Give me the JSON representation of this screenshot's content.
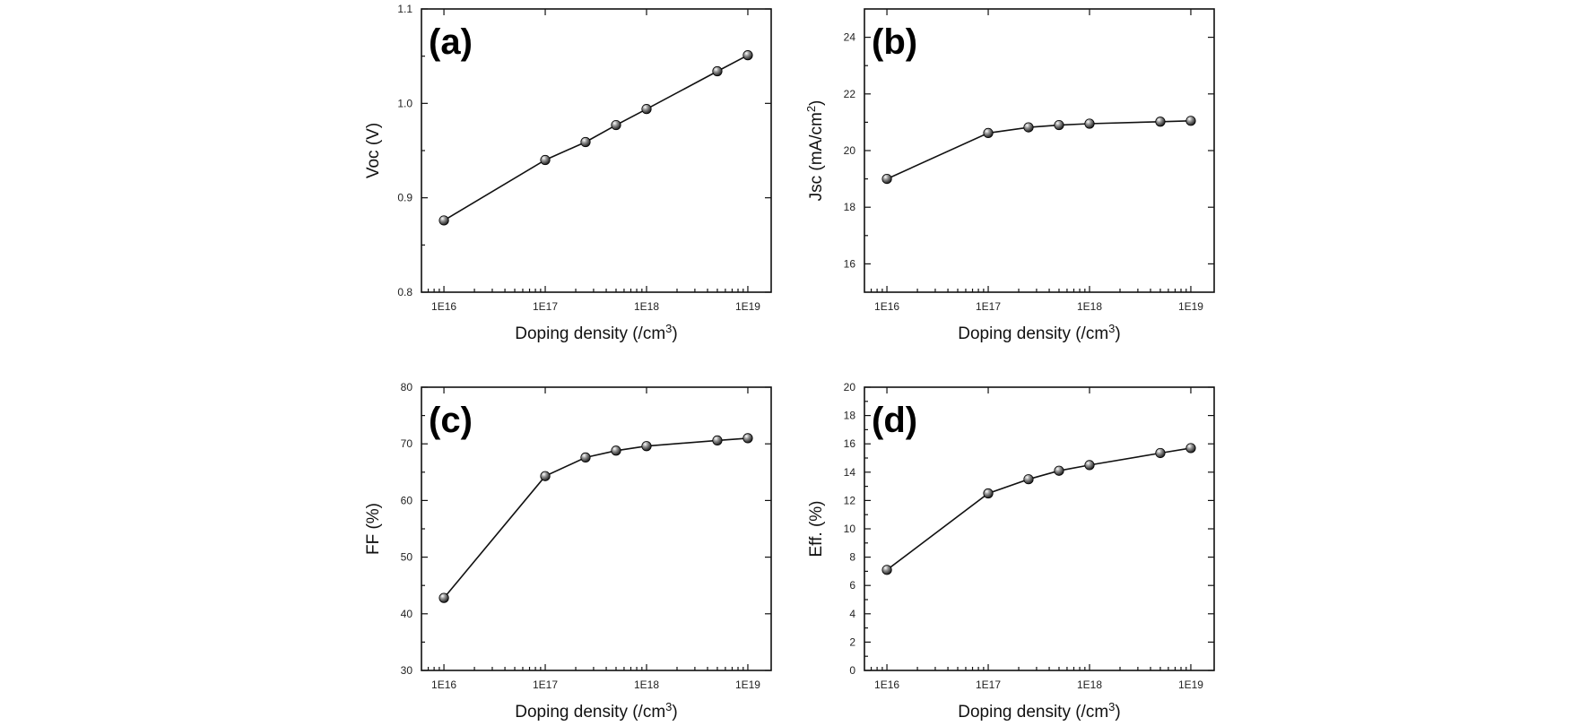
{
  "chart_data": [
    {
      "type": "line",
      "panel_label": "(a)",
      "xlabel_main": "Doping density (/cm",
      "xlabel_sup": "3",
      "xlabel_end": ")",
      "ylabel_main": "Voc (V)",
      "ylabel_sup": "",
      "ylabel_end": "",
      "x_scale": "log",
      "xlim": [
        6000000000000000.0,
        1.7e+19
      ],
      "x_ticks": [
        1e+16,
        1e+17,
        1e+18,
        1e+19
      ],
      "x_tick_labels": [
        "1E16",
        "1E17",
        "1E18",
        "1E19"
      ],
      "ylim": [
        0.8,
        1.1
      ],
      "y_ticks": [
        0.8,
        0.9,
        1.0,
        1.1
      ],
      "y_tick_labels": [
        "0.8",
        "0.9",
        "1.0",
        "1.1"
      ],
      "x": [
        1e+16,
        1e+17,
        2.5e+17,
        5e+17,
        1e+18,
        5e+18,
        1e+19
      ],
      "values": [
        0.876,
        0.94,
        0.959,
        0.977,
        0.994,
        1.034,
        1.051
      ]
    },
    {
      "type": "line",
      "panel_label": "(b)",
      "xlabel_main": "Doping density (/cm",
      "xlabel_sup": "3",
      "xlabel_end": ")",
      "ylabel_main": "Jsc (mA/cm",
      "ylabel_sup": "2",
      "ylabel_end": ")",
      "x_scale": "log",
      "xlim": [
        6000000000000000.0,
        1.7e+19
      ],
      "x_ticks": [
        1e+16,
        1e+17,
        1e+18,
        1e+19
      ],
      "x_tick_labels": [
        "1E16",
        "1E17",
        "1E18",
        "1E19"
      ],
      "ylim": [
        15,
        25
      ],
      "y_ticks": [
        16,
        18,
        20,
        22,
        24
      ],
      "y_tick_labels": [
        "16",
        "18",
        "20",
        "22",
        "24"
      ],
      "x": [
        1e+16,
        1e+17,
        2.5e+17,
        5e+17,
        1e+18,
        5e+18,
        1e+19
      ],
      "values": [
        19.0,
        20.62,
        20.82,
        20.9,
        20.95,
        21.02,
        21.05
      ]
    },
    {
      "type": "line",
      "panel_label": "(c)",
      "xlabel_main": "Doping density (/cm",
      "xlabel_sup": "3",
      "xlabel_end": ")",
      "ylabel_main": "FF (%)",
      "ylabel_sup": "",
      "ylabel_end": "",
      "x_scale": "log",
      "xlim": [
        6000000000000000.0,
        1.7e+19
      ],
      "x_ticks": [
        1e+16,
        1e+17,
        1e+18,
        1e+19
      ],
      "x_tick_labels": [
        "1E16",
        "1E17",
        "1E18",
        "1E19"
      ],
      "ylim": [
        30,
        80
      ],
      "y_ticks": [
        30,
        40,
        50,
        60,
        70,
        80
      ],
      "y_tick_labels": [
        "30",
        "40",
        "50",
        "60",
        "70",
        "80"
      ],
      "x": [
        1e+16,
        1e+17,
        2.5e+17,
        5e+17,
        1e+18,
        5e+18,
        1e+19
      ],
      "values": [
        42.8,
        64.3,
        67.6,
        68.8,
        69.6,
        70.6,
        71.0
      ]
    },
    {
      "type": "line",
      "panel_label": "(d)",
      "xlabel_main": "Doping density (/cm",
      "xlabel_sup": "3",
      "xlabel_end": ")",
      "ylabel_main": "Eff. (%)",
      "ylabel_sup": "",
      "ylabel_end": "",
      "x_scale": "log",
      "xlim": [
        6000000000000000.0,
        1.7e+19
      ],
      "x_ticks": [
        1e+16,
        1e+17,
        1e+18,
        1e+19
      ],
      "x_tick_labels": [
        "1E16",
        "1E17",
        "1E18",
        "1E19"
      ],
      "ylim": [
        0,
        20
      ],
      "y_ticks": [
        0,
        2,
        4,
        6,
        8,
        10,
        12,
        14,
        16,
        18,
        20
      ],
      "y_tick_labels": [
        "0",
        "2",
        "4",
        "6",
        "8",
        "10",
        "12",
        "14",
        "16",
        "18",
        "20"
      ],
      "x": [
        1e+16,
        1e+17,
        2.5e+17,
        5e+17,
        1e+18,
        5e+18,
        1e+19
      ],
      "values": [
        7.1,
        12.5,
        13.5,
        14.1,
        14.5,
        15.35,
        15.7
      ]
    }
  ]
}
